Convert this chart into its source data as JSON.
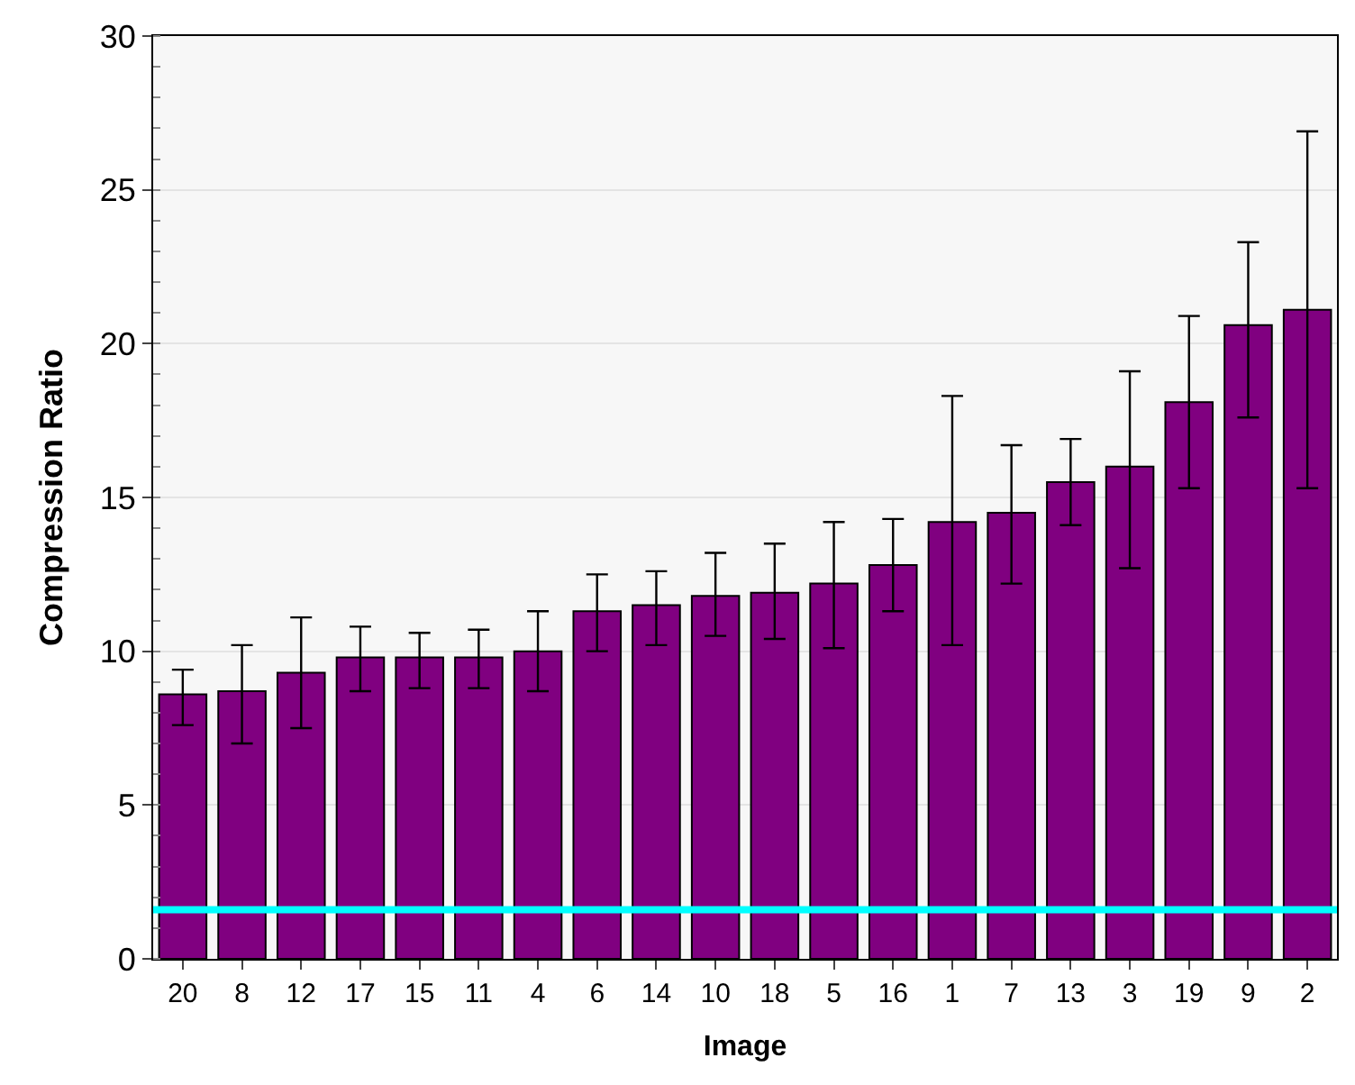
{
  "chart_data": {
    "type": "bar",
    "xlabel": "Image",
    "ylabel": "Compression Ratio",
    "categories": [
      "20",
      "8",
      "12",
      "17",
      "15",
      "11",
      "4",
      "6",
      "14",
      "10",
      "18",
      "5",
      "16",
      "1",
      "7",
      "13",
      "3",
      "19",
      "9",
      "2"
    ],
    "values": [
      8.6,
      8.7,
      9.3,
      9.8,
      9.8,
      9.8,
      10.0,
      11.3,
      11.5,
      11.8,
      11.9,
      12.2,
      12.8,
      14.2,
      14.5,
      15.5,
      16.0,
      18.1,
      20.6,
      21.1
    ],
    "errors": [
      [
        7.6,
        9.4
      ],
      [
        7.0,
        10.2
      ],
      [
        7.5,
        11.1
      ],
      [
        8.7,
        10.8
      ],
      [
        8.8,
        10.6
      ],
      [
        8.8,
        10.7
      ],
      [
        8.7,
        11.3
      ],
      [
        10.0,
        12.5
      ],
      [
        10.2,
        12.6
      ],
      [
        10.5,
        13.2
      ],
      [
        10.4,
        13.5
      ],
      [
        10.1,
        14.2
      ],
      [
        11.3,
        14.3
      ],
      [
        10.2,
        18.3
      ],
      [
        12.2,
        16.7
      ],
      [
        14.1,
        16.9
      ],
      [
        12.7,
        19.1
      ],
      [
        15.3,
        20.9
      ],
      [
        17.6,
        23.3
      ],
      [
        15.3,
        26.9
      ]
    ],
    "color": "#800080",
    "ylim": [
      0,
      30
    ],
    "yticks": [
      0,
      5,
      10,
      15,
      20,
      25,
      30
    ],
    "grid": "y",
    "ref_lines": [
      {
        "axis": "y",
        "value": 1.6,
        "color": "#00ffff"
      }
    ]
  }
}
